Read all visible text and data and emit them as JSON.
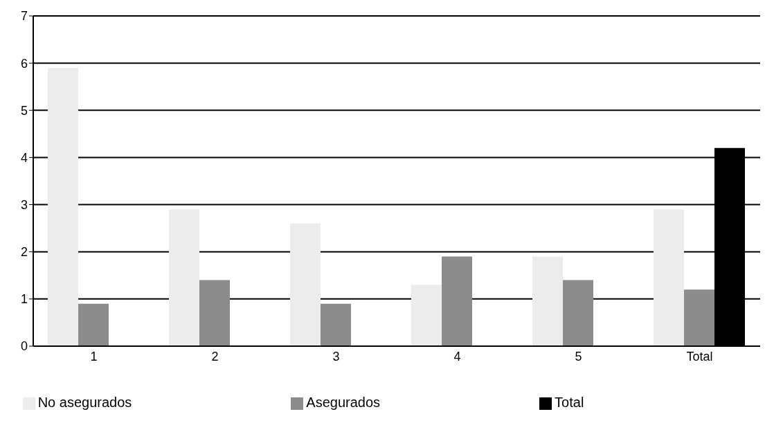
{
  "chart_data": {
    "type": "bar",
    "categories": [
      "1",
      "2",
      "3",
      "4",
      "5",
      "Total"
    ],
    "series": [
      {
        "name": "No asegurados",
        "color": "#ececec",
        "values": [
          5.9,
          2.9,
          2.6,
          1.3,
          1.9,
          2.9
        ]
      },
      {
        "name": "Asegurados",
        "color": "#8c8c8c",
        "values": [
          0.9,
          1.4,
          0.9,
          1.9,
          1.4,
          1.2
        ]
      },
      {
        "name": "Total",
        "color": "#000000",
        "values": [
          null,
          null,
          null,
          null,
          null,
          4.2
        ]
      }
    ],
    "ylim": [
      0,
      7
    ],
    "yticks": [
      0,
      1,
      2,
      3,
      4,
      5,
      6,
      7
    ],
    "grid": "y",
    "legend": "bottom"
  }
}
